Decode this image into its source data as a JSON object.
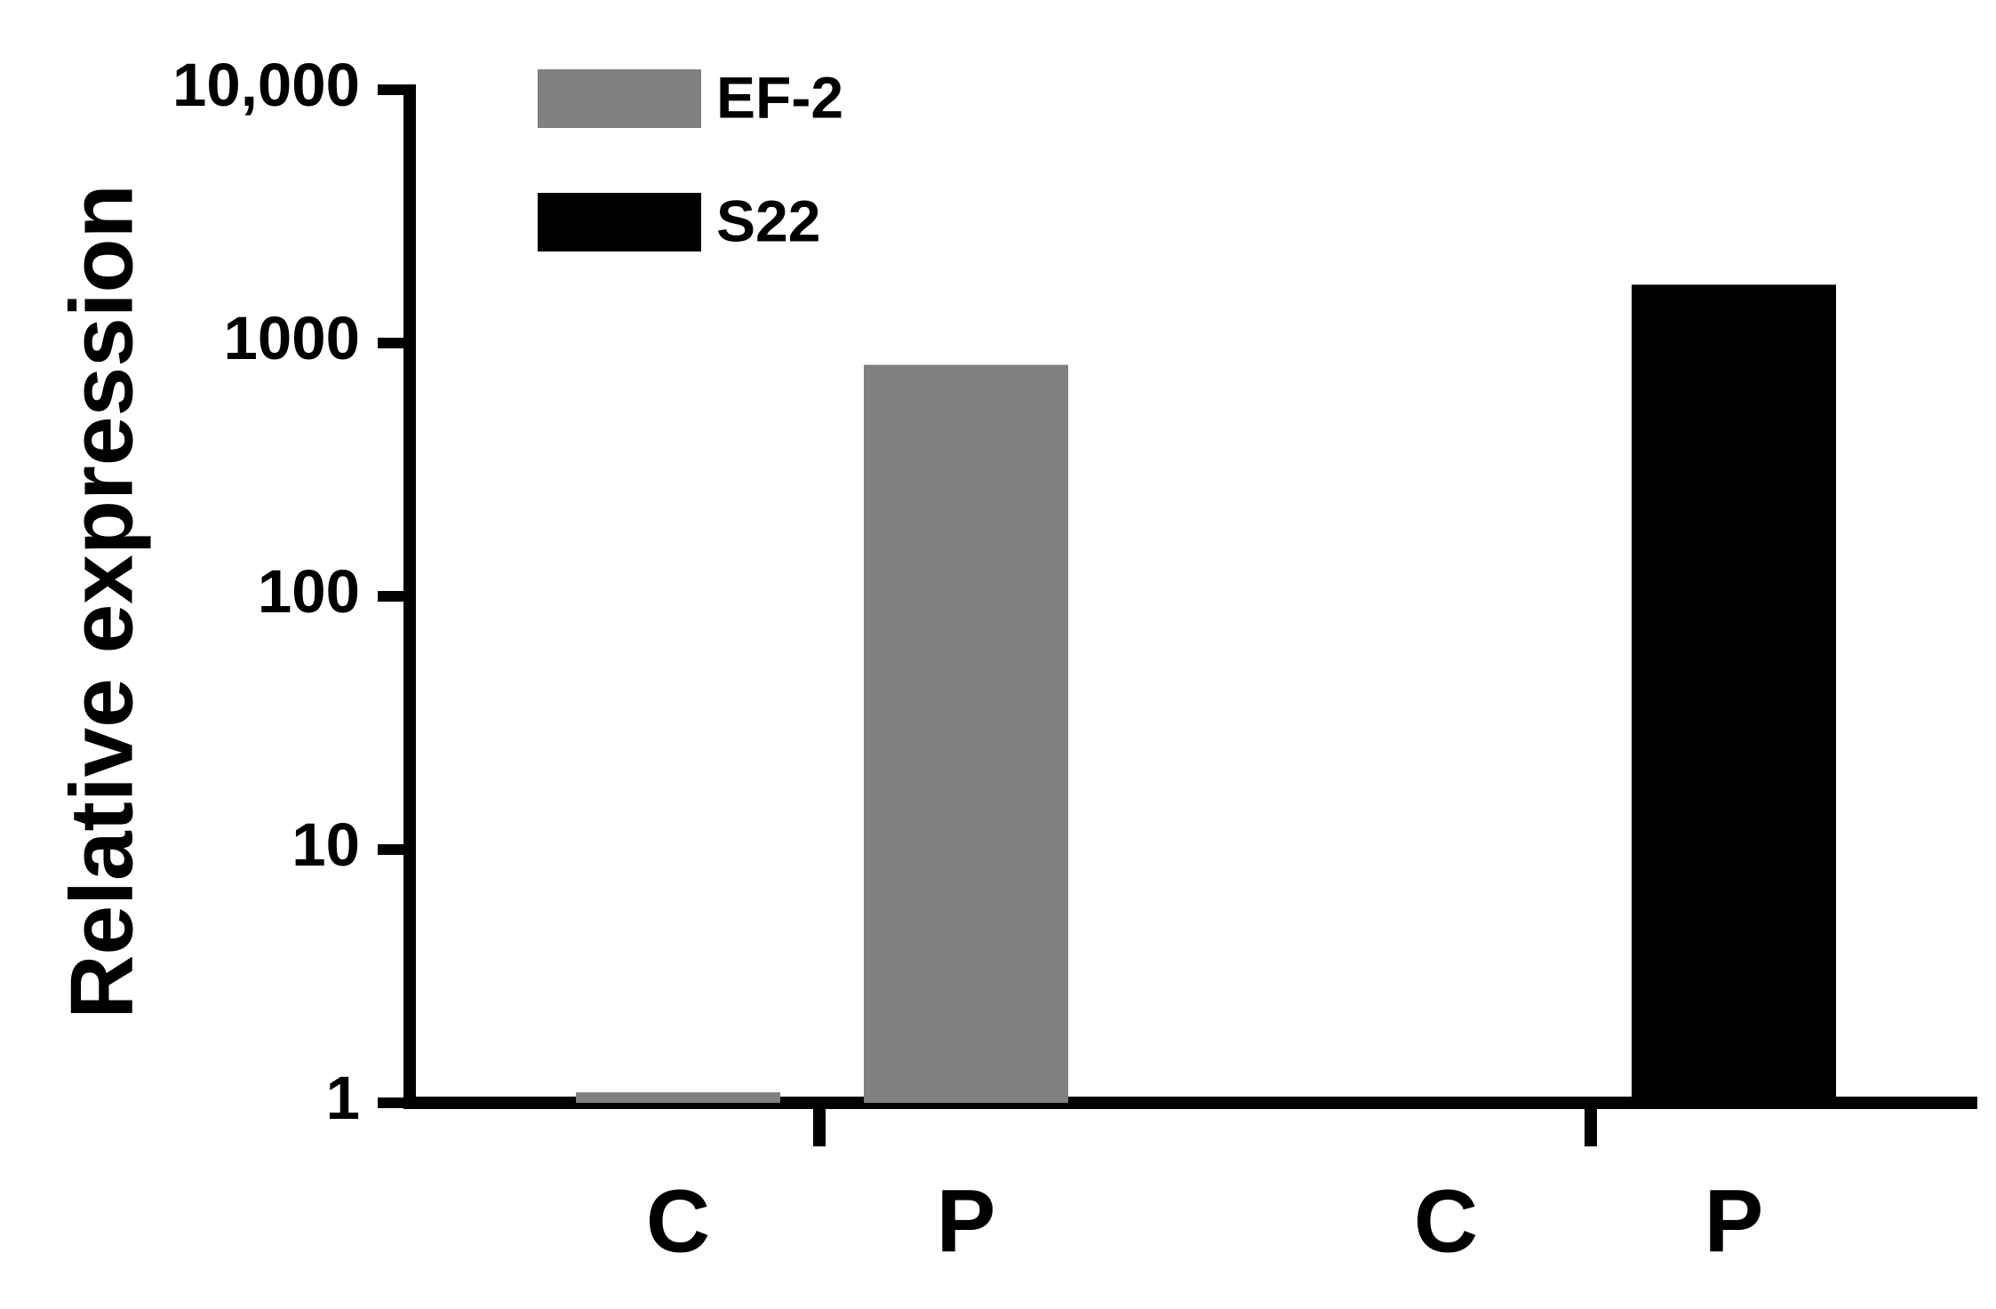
{
  "chart_data": {
    "type": "bar",
    "y_label": "Relative expression",
    "categories": [
      "C",
      "P",
      "C",
      "P"
    ],
    "series": [
      {
        "name": "EF-2",
        "color": "#808080",
        "values": [
          1.1,
          820,
          null,
          null
        ]
      },
      {
        "name": "S22",
        "color": "#000000",
        "values": [
          null,
          null,
          1.03,
          1700
        ]
      }
    ],
    "ylim": [
      1,
      10000
    ],
    "yticks": [
      1,
      10,
      100,
      1000,
      {
        "value": 10000,
        "label": "10,000"
      }
    ],
    "log_scale": true,
    "grid": false,
    "legend": "top-left"
  }
}
